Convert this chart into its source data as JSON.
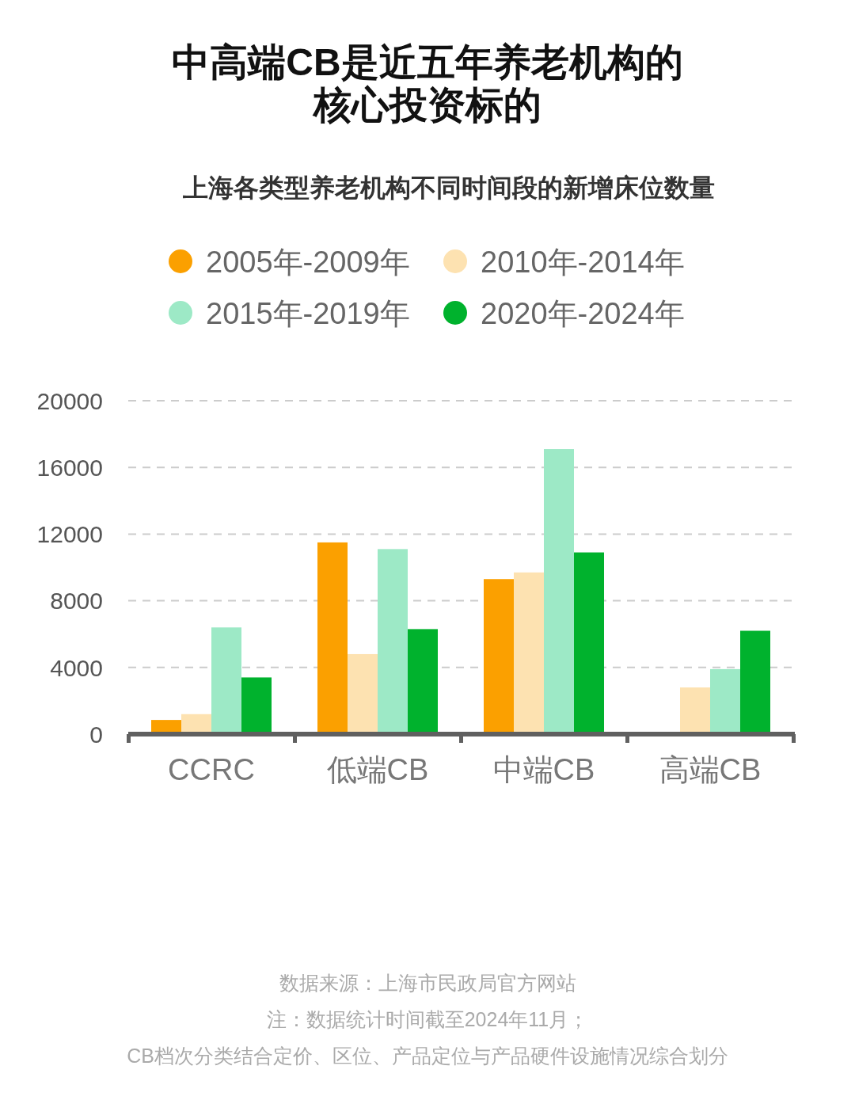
{
  "chart_data": {
    "type": "bar",
    "title": "中高端CB是近五年养老机构的核心投资标的",
    "subtitle": "上海各类型养老机构不同时间段的新增床位数量",
    "categories": [
      "CCRC",
      "低端CB",
      "中端CB",
      "高端CB"
    ],
    "series": [
      {
        "name": "2005年-2009年",
        "color": "#fba000",
        "values": [
          850,
          11500,
          9300,
          null
        ]
      },
      {
        "name": "2010年-2014年",
        "color": "#fde2b1",
        "values": [
          1200,
          4800,
          9700,
          2800
        ]
      },
      {
        "name": "2015年-2019年",
        "color": "#9de9c6",
        "values": [
          6400,
          11100,
          17100,
          3900
        ]
      },
      {
        "name": "2020年-2024年",
        "color": "#00b22d",
        "values": [
          3400,
          6300,
          10900,
          6200
        ]
      }
    ],
    "ylim": [
      0,
      20000
    ],
    "yticks": [
      0,
      4000,
      8000,
      12000,
      16000,
      20000
    ],
    "grid": "y",
    "legend": "top",
    "annotations": [
      "数据来源：上海市民政局官方网站",
      "注：数据统计时间截至2024年11月；",
      "CB档次分类结合定价、区位、产品定位与产品硬件设施情况综合划分"
    ]
  }
}
